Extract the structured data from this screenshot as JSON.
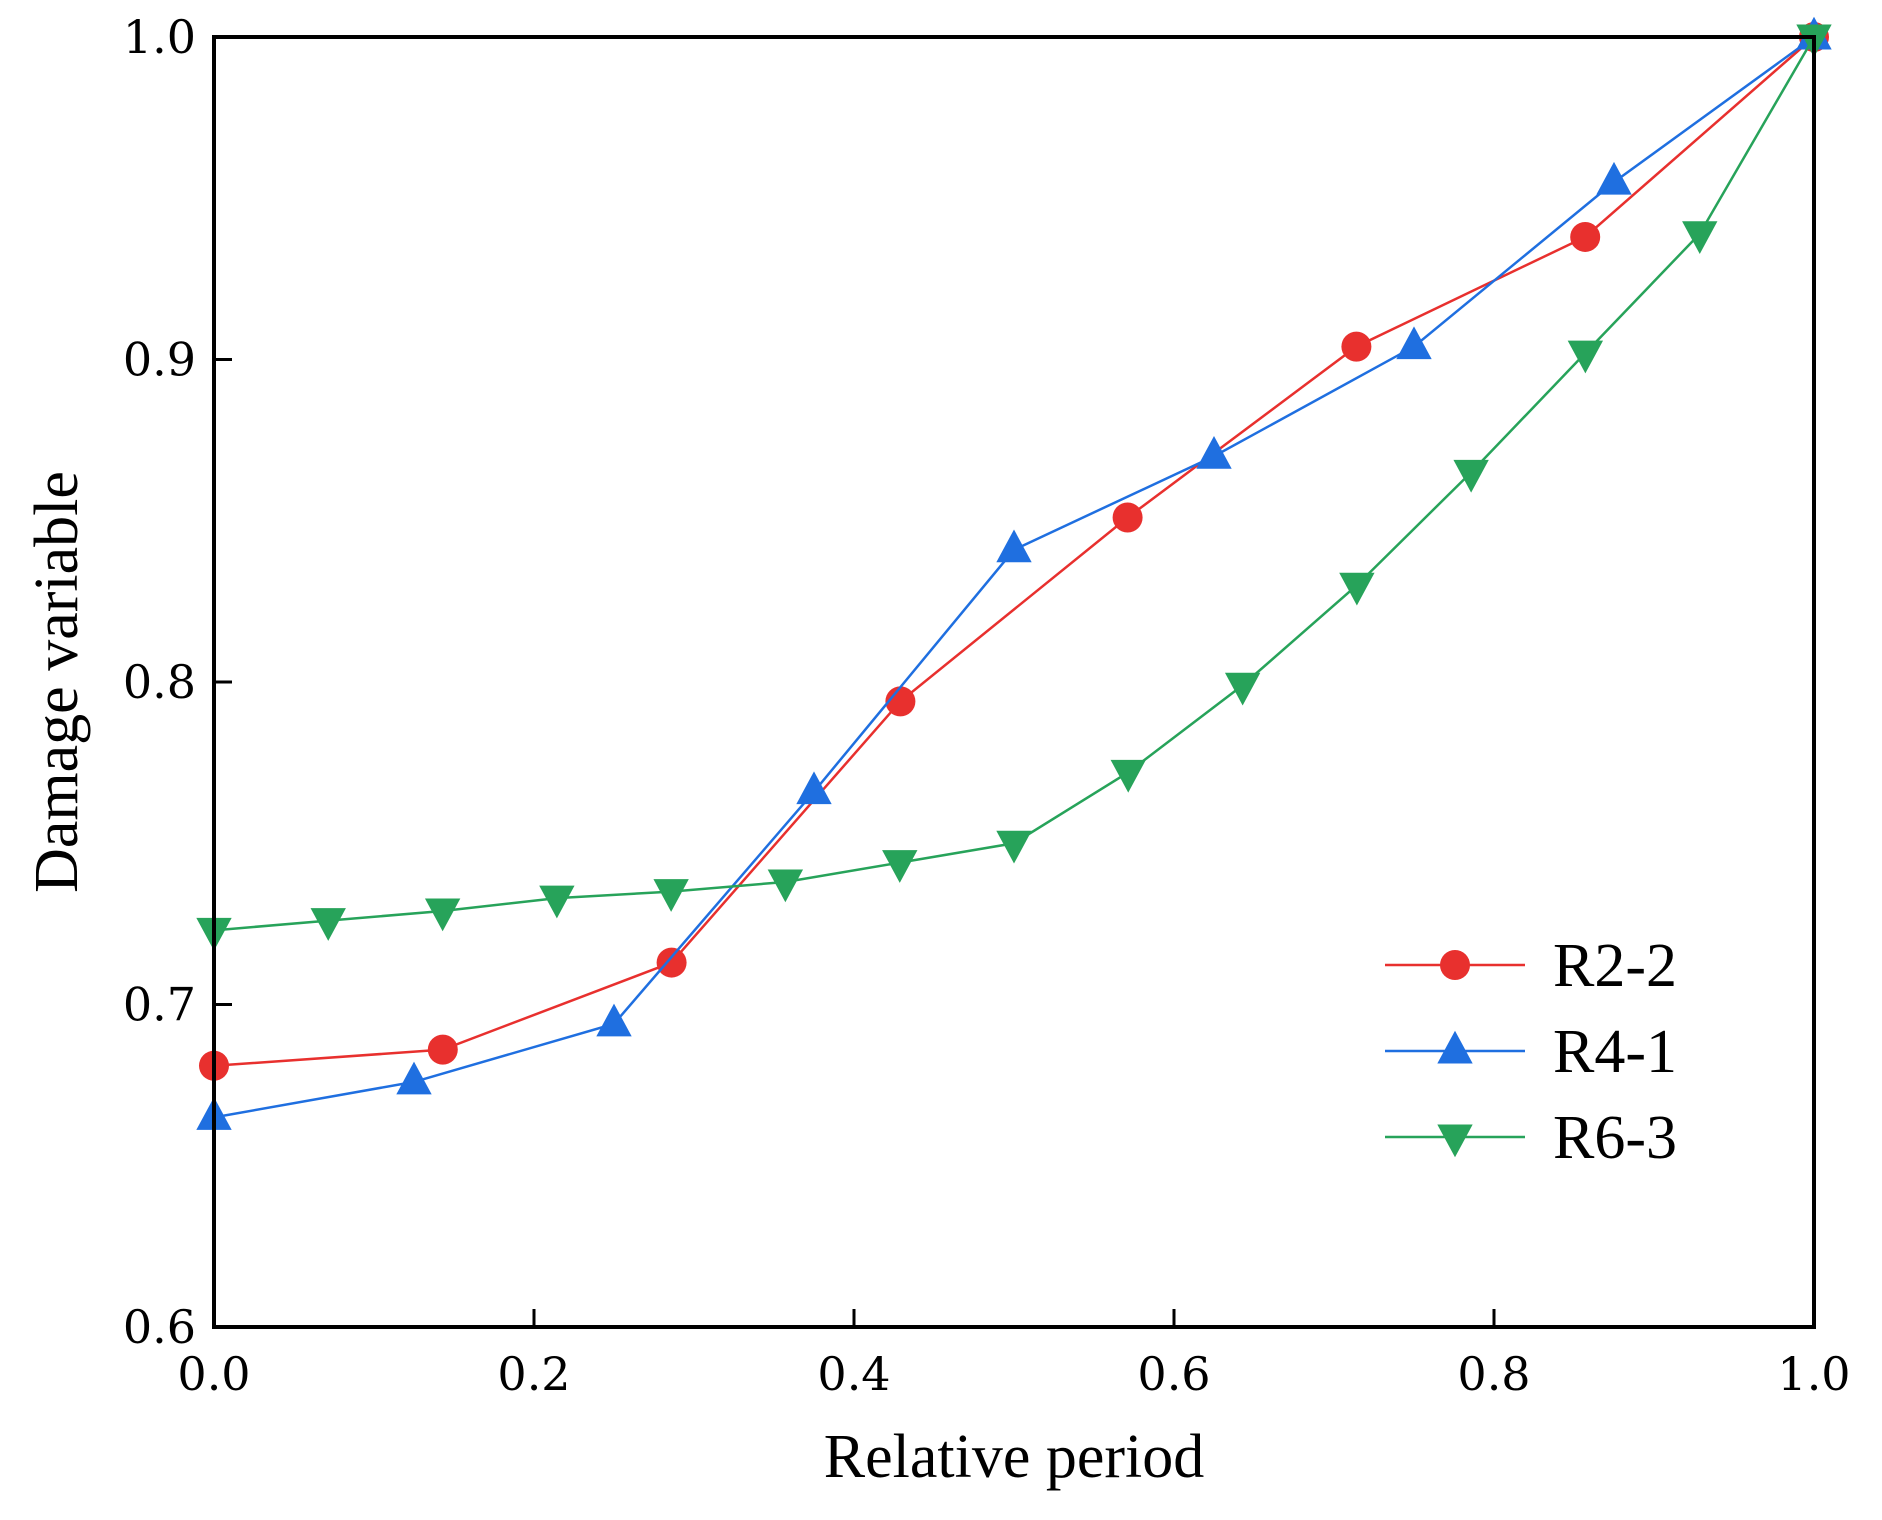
{
  "chart_data": {
    "type": "line",
    "title": "",
    "xlabel": "Relative period",
    "ylabel": "Damage variable",
    "xlim": [
      0.0,
      1.0
    ],
    "ylim": [
      0.6,
      1.0
    ],
    "xticks": [
      0.0,
      0.2,
      0.4,
      0.6,
      0.8,
      1.0
    ],
    "xtick_labels": [
      "0.0",
      "0.2",
      "0.4",
      "0.6",
      "0.8",
      "1.0"
    ],
    "yticks": [
      0.6,
      0.7,
      0.8,
      0.9,
      1.0
    ],
    "ytick_labels": [
      "0.6",
      "0.7",
      "0.8",
      "0.9",
      "1.0"
    ],
    "grid": false,
    "legend_position": "lower-right",
    "series": [
      {
        "name": "R2-2",
        "color": "#e8302e",
        "marker": "circle",
        "x": [
          0.0,
          0.143,
          0.286,
          0.429,
          0.571,
          0.714,
          0.857,
          1.0
        ],
        "y": [
          0.681,
          0.686,
          0.713,
          0.794,
          0.851,
          0.904,
          0.938,
          1.0
        ]
      },
      {
        "name": "R4-1",
        "color": "#1f6fe0",
        "marker": "triangle-up",
        "x": [
          0.0,
          0.125,
          0.25,
          0.375,
          0.5,
          0.625,
          0.75,
          0.875,
          1.0
        ],
        "y": [
          0.665,
          0.676,
          0.694,
          0.766,
          0.841,
          0.87,
          0.904,
          0.955,
          1.0
        ]
      },
      {
        "name": "R6-3",
        "color": "#27a35a",
        "marker": "triangle-down",
        "x": [
          0.0,
          0.0714,
          0.1429,
          0.2143,
          0.2857,
          0.3571,
          0.4286,
          0.5,
          0.5714,
          0.6429,
          0.7143,
          0.7857,
          0.8571,
          0.9286,
          1.0
        ],
        "y": [
          0.723,
          0.726,
          0.729,
          0.733,
          0.735,
          0.738,
          0.744,
          0.75,
          0.772,
          0.799,
          0.83,
          0.865,
          0.902,
          0.939,
          1.0
        ]
      }
    ]
  }
}
